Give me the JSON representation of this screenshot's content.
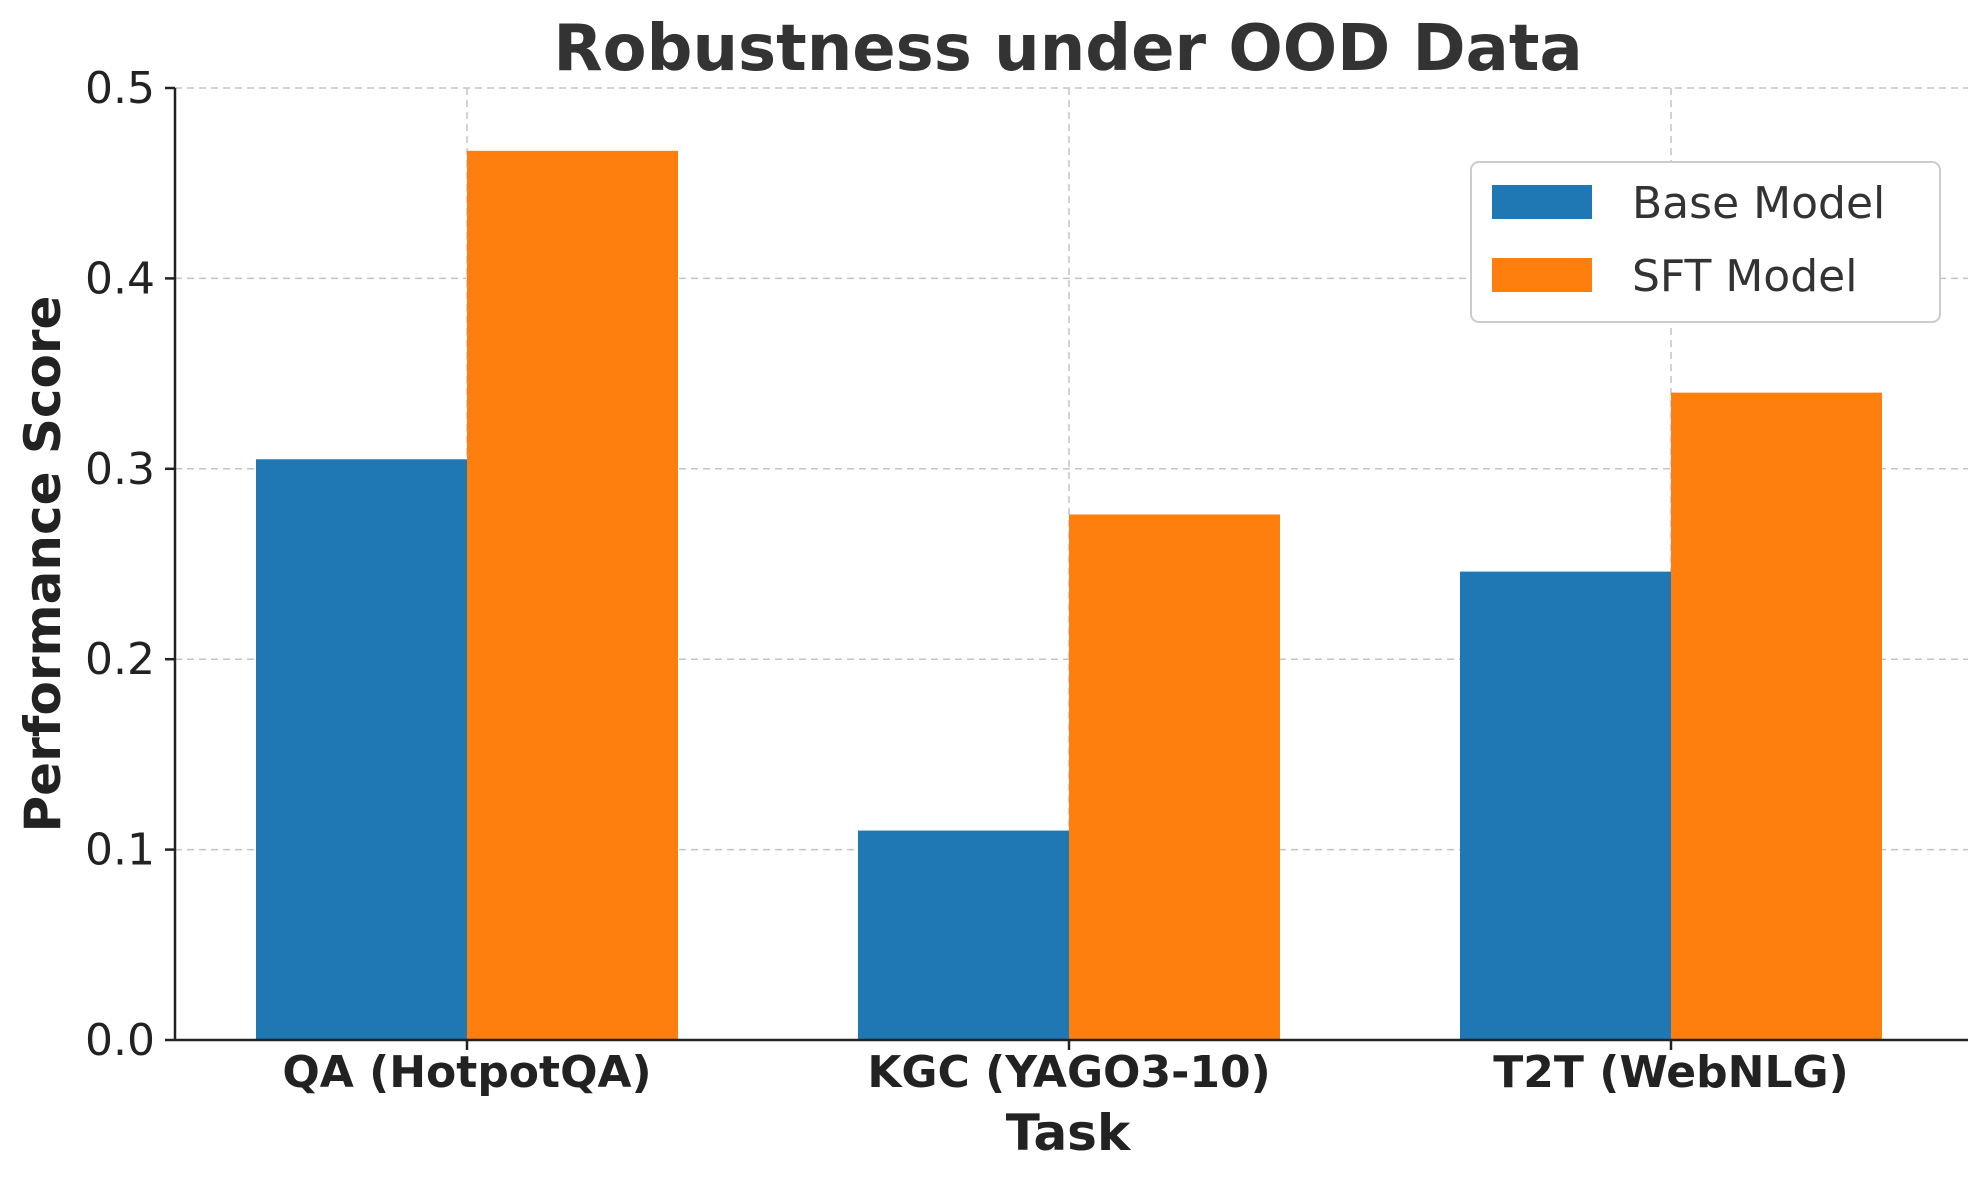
{
  "chart_data": {
    "type": "bar",
    "title": "Robustness under OOD Data",
    "xlabel": "Task",
    "ylabel": "Performance Score",
    "categories": [
      "QA (HotpotQA)",
      "KGC (YAGO3-10)",
      "T2T (WebNLG)"
    ],
    "series": [
      {
        "name": "Base Model",
        "color": "#1f77b4",
        "values": [
          0.305,
          0.11,
          0.246
        ]
      },
      {
        "name": "SFT Model",
        "color": "#ff7f0e",
        "values": [
          0.467,
          0.276,
          0.34
        ]
      }
    ],
    "ylim": [
      0,
      0.5
    ],
    "yticks": [
      "0.0",
      "0.1",
      "0.2",
      "0.3",
      "0.4",
      "0.5"
    ],
    "grid": true,
    "legend_position": "top-right"
  }
}
